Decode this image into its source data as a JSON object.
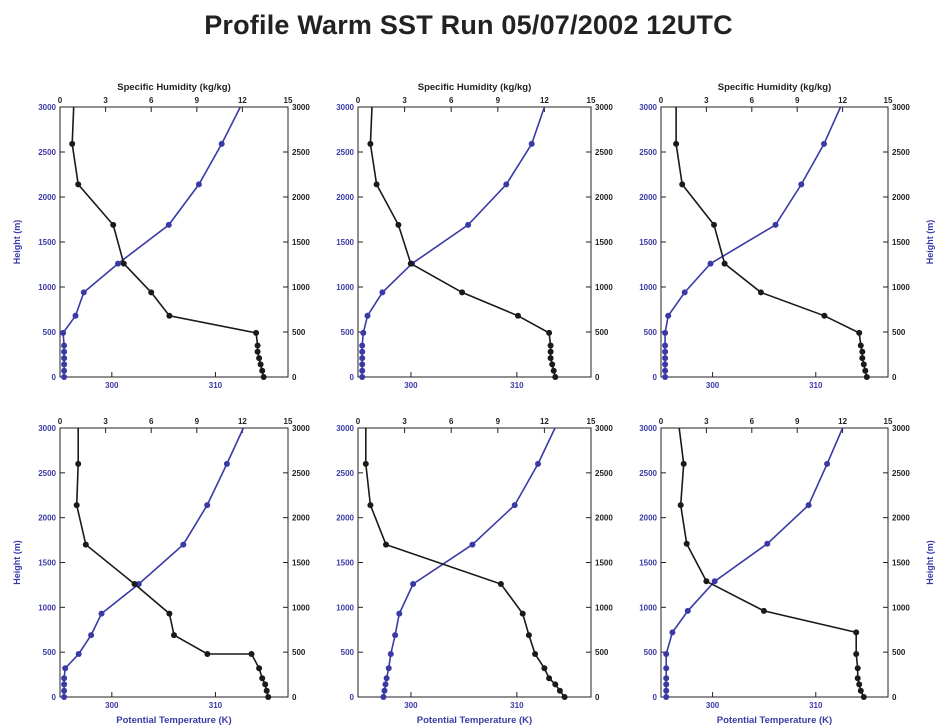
{
  "title": "Profile Warm SST Run 05/07/2002 12UTC",
  "colors": {
    "temperature": "#3a3aa6",
    "humidity": "#1a1a1a",
    "axis_blue": "#3a3aa6",
    "axis_black": "#222222"
  },
  "chart_data": [
    {
      "type": "line",
      "panel": "top-left",
      "xlabel_top": "Specific Humidity (kg/kg)",
      "xlabel_bottom": "",
      "ylabel": "Height (m)",
      "ylabel_right": "",
      "temp_ticks": [
        "300",
        "310"
      ],
      "temp_range": [
        295,
        317
      ],
      "hum_ticks": [
        "0",
        "3",
        "6",
        "9",
        "12",
        "15"
      ],
      "hum_range": [
        0,
        15
      ],
      "height_ticks": [
        "0",
        "500",
        "1000",
        "1500",
        "2000",
        "2500",
        "3000"
      ],
      "height_range": [
        0,
        3000
      ],
      "series": [
        {
          "variable": "potential_temperature",
          "points": [
            [
              295.4,
              0
            ],
            [
              295.4,
              70
            ],
            [
              295.4,
              140
            ],
            [
              295.4,
              210
            ],
            [
              295.4,
              280
            ],
            [
              295.4,
              350
            ],
            [
              295.3,
              490
            ],
            [
              296.5,
              680
            ],
            [
              297.3,
              940
            ],
            [
              300.6,
              1260
            ],
            [
              305.5,
              1690
            ],
            [
              308.4,
              2140
            ],
            [
              310.6,
              2590
            ],
            [
              312.4,
              3000
            ]
          ]
        },
        {
          "variable": "specific_humidity",
          "points": [
            [
              13.4,
              0
            ],
            [
              13.3,
              70
            ],
            [
              13.2,
              140
            ],
            [
              13.1,
              210
            ],
            [
              13.0,
              280
            ],
            [
              13.0,
              350
            ],
            [
              12.9,
              490
            ],
            [
              7.2,
              680
            ],
            [
              6.0,
              940
            ],
            [
              4.2,
              1260
            ],
            [
              3.5,
              1690
            ],
            [
              1.2,
              2140
            ],
            [
              0.8,
              2590
            ],
            [
              0.9,
              3000
            ]
          ]
        }
      ]
    },
    {
      "type": "line",
      "panel": "top-middle",
      "xlabel_top": "Specific Humidity (kg/kg)",
      "xlabel_bottom": "",
      "ylabel": "",
      "ylabel_right": "",
      "temp_ticks": [
        "300",
        "310"
      ],
      "temp_range": [
        295,
        317
      ],
      "hum_ticks": [
        "0",
        "3",
        "6",
        "9",
        "12",
        "15"
      ],
      "hum_range": [
        0,
        15
      ],
      "height_ticks": [
        "0",
        "500",
        "1000",
        "1500",
        "2000",
        "2500",
        "3000"
      ],
      "height_range": [
        0,
        3000
      ],
      "series": [
        {
          "variable": "potential_temperature",
          "points": [
            [
              295.4,
              0
            ],
            [
              295.4,
              70
            ],
            [
              295.4,
              140
            ],
            [
              295.4,
              210
            ],
            [
              295.4,
              280
            ],
            [
              295.4,
              350
            ],
            [
              295.5,
              490
            ],
            [
              295.9,
              680
            ],
            [
              297.3,
              940
            ],
            [
              300.1,
              1260
            ],
            [
              305.4,
              1690
            ],
            [
              309.0,
              2140
            ],
            [
              311.4,
              2590
            ],
            [
              312.6,
              3000
            ]
          ]
        },
        {
          "variable": "specific_humidity",
          "points": [
            [
              12.7,
              0
            ],
            [
              12.6,
              70
            ],
            [
              12.5,
              140
            ],
            [
              12.4,
              210
            ],
            [
              12.4,
              280
            ],
            [
              12.4,
              350
            ],
            [
              12.3,
              490
            ],
            [
              10.3,
              680
            ],
            [
              6.7,
              940
            ],
            [
              3.4,
              1260
            ],
            [
              2.6,
              1690
            ],
            [
              1.2,
              2140
            ],
            [
              0.8,
              2590
            ],
            [
              0.9,
              3000
            ]
          ]
        }
      ]
    },
    {
      "type": "line",
      "panel": "top-right",
      "xlabel_top": "Specific Humidity (kg/kg)",
      "xlabel_bottom": "",
      "ylabel": "",
      "ylabel_right": "Height (m)",
      "temp_ticks": [
        "300",
        "310"
      ],
      "temp_range": [
        295,
        317
      ],
      "hum_ticks": [
        "0",
        "3",
        "6",
        "9",
        "12",
        "15"
      ],
      "hum_range": [
        0,
        15
      ],
      "height_ticks": [
        "0",
        "500",
        "1000",
        "1500",
        "2000",
        "2500",
        "3000"
      ],
      "height_range": [
        0,
        3000
      ],
      "series": [
        {
          "variable": "potential_temperature",
          "points": [
            [
              295.4,
              0
            ],
            [
              295.4,
              70
            ],
            [
              295.4,
              140
            ],
            [
              295.4,
              210
            ],
            [
              295.4,
              280
            ],
            [
              295.4,
              350
            ],
            [
              295.4,
              490
            ],
            [
              295.7,
              680
            ],
            [
              297.3,
              940
            ],
            [
              299.8,
              1260
            ],
            [
              306.1,
              1690
            ],
            [
              308.6,
              2140
            ],
            [
              310.8,
              2590
            ],
            [
              312.4,
              3000
            ]
          ]
        },
        {
          "variable": "specific_humidity",
          "points": [
            [
              13.6,
              0
            ],
            [
              13.5,
              70
            ],
            [
              13.4,
              140
            ],
            [
              13.3,
              210
            ],
            [
              13.3,
              280
            ],
            [
              13.2,
              350
            ],
            [
              13.1,
              490
            ],
            [
              10.8,
              680
            ],
            [
              6.6,
              940
            ],
            [
              4.2,
              1260
            ],
            [
              3.5,
              1690
            ],
            [
              1.4,
              2140
            ],
            [
              1.0,
              2590
            ],
            [
              1.0,
              3000
            ]
          ]
        }
      ]
    },
    {
      "type": "line",
      "panel": "bottom-left",
      "xlabel_top": "",
      "xlabel_bottom": "Potential Temperature (K)",
      "ylabel": "Height (m)",
      "ylabel_right": "",
      "temp_ticks": [
        "300",
        "310"
      ],
      "temp_range": [
        295,
        317
      ],
      "hum_ticks": [
        "0",
        "3",
        "6",
        "9",
        "12",
        "15"
      ],
      "hum_range": [
        0,
        15
      ],
      "height_ticks": [
        "0",
        "500",
        "1000",
        "1500",
        "2000",
        "2500",
        "3000"
      ],
      "height_range": [
        0,
        3000
      ],
      "series": [
        {
          "variable": "potential_temperature",
          "points": [
            [
              295.4,
              0
            ],
            [
              295.4,
              70
            ],
            [
              295.4,
              140
            ],
            [
              295.4,
              210
            ],
            [
              295.5,
              320
            ],
            [
              296.8,
              480
            ],
            [
              298.0,
              690
            ],
            [
              299.0,
              930
            ],
            [
              302.6,
              1260
            ],
            [
              306.9,
              1700
            ],
            [
              309.2,
              2140
            ],
            [
              311.1,
              2600
            ],
            [
              312.7,
              3000
            ]
          ]
        },
        {
          "variable": "specific_humidity",
          "points": [
            [
              13.7,
              0
            ],
            [
              13.6,
              70
            ],
            [
              13.5,
              140
            ],
            [
              13.3,
              210
            ],
            [
              13.1,
              320
            ],
            [
              12.6,
              480
            ],
            [
              9.7,
              480
            ],
            [
              7.5,
              690
            ],
            [
              7.2,
              930
            ],
            [
              4.9,
              1260
            ],
            [
              1.7,
              1700
            ],
            [
              1.1,
              2140
            ],
            [
              1.2,
              2600
            ],
            [
              1.2,
              3000
            ]
          ]
        }
      ]
    },
    {
      "type": "line",
      "panel": "bottom-middle",
      "xlabel_top": "",
      "xlabel_bottom": "Potential Temperature (K)",
      "ylabel": "",
      "ylabel_right": "",
      "temp_ticks": [
        "300",
        "310"
      ],
      "temp_range": [
        295,
        317
      ],
      "hum_ticks": [
        "0",
        "3",
        "6",
        "9",
        "12",
        "15"
      ],
      "hum_range": [
        0,
        15
      ],
      "height_ticks": [
        "0",
        "500",
        "1000",
        "1500",
        "2000",
        "2500",
        "3000"
      ],
      "height_range": [
        0,
        3000
      ],
      "series": [
        {
          "variable": "potential_temperature",
          "points": [
            [
              297.4,
              0
            ],
            [
              297.5,
              70
            ],
            [
              297.6,
              140
            ],
            [
              297.7,
              210
            ],
            [
              297.9,
              320
            ],
            [
              298.1,
              480
            ],
            [
              298.5,
              690
            ],
            [
              298.9,
              930
            ],
            [
              300.2,
              1260
            ],
            [
              305.8,
              1700
            ],
            [
              309.8,
              2140
            ],
            [
              312.0,
              2600
            ],
            [
              313.6,
              3000
            ]
          ]
        },
        {
          "variable": "specific_humidity",
          "points": [
            [
              13.3,
              0
            ],
            [
              13.0,
              70
            ],
            [
              12.7,
              140
            ],
            [
              12.3,
              210
            ],
            [
              12.0,
              320
            ],
            [
              11.4,
              480
            ],
            [
              11.0,
              690
            ],
            [
              10.6,
              930
            ],
            [
              9.2,
              1260
            ],
            [
              1.8,
              1700
            ],
            [
              0.8,
              2140
            ],
            [
              0.5,
              2600
            ],
            [
              0.5,
              3000
            ]
          ]
        }
      ]
    },
    {
      "type": "line",
      "panel": "bottom-right",
      "xlabel_top": "",
      "xlabel_bottom": "Potential Temperature (K)",
      "ylabel": "",
      "ylabel_right": "Height (m)",
      "temp_ticks": [
        "300",
        "310"
      ],
      "temp_range": [
        295,
        317
      ],
      "hum_ticks": [
        "0",
        "3",
        "6",
        "9",
        "12",
        "15"
      ],
      "hum_range": [
        0,
        15
      ],
      "height_ticks": [
        "0",
        "500",
        "1000",
        "1500",
        "2000",
        "2500",
        "3000"
      ],
      "height_range": [
        0,
        3000
      ],
      "series": [
        {
          "variable": "potential_temperature",
          "points": [
            [
              295.5,
              0
            ],
            [
              295.5,
              70
            ],
            [
              295.5,
              140
            ],
            [
              295.5,
              210
            ],
            [
              295.5,
              320
            ],
            [
              295.5,
              480
            ],
            [
              296.1,
              720
            ],
            [
              297.6,
              960
            ],
            [
              300.2,
              1290
            ],
            [
              305.3,
              1710
            ],
            [
              309.3,
              2140
            ],
            [
              311.1,
              2600
            ],
            [
              312.6,
              3000
            ]
          ]
        },
        {
          "variable": "specific_humidity",
          "points": [
            [
              13.4,
              0
            ],
            [
              13.2,
              70
            ],
            [
              13.1,
              140
            ],
            [
              13.0,
              210
            ],
            [
              13.0,
              320
            ],
            [
              12.9,
              480
            ],
            [
              12.9,
              720
            ],
            [
              6.8,
              960
            ],
            [
              3.0,
              1290
            ],
            [
              1.7,
              1710
            ],
            [
              1.3,
              2140
            ],
            [
              1.5,
              2600
            ],
            [
              1.2,
              3000
            ]
          ]
        }
      ]
    }
  ]
}
